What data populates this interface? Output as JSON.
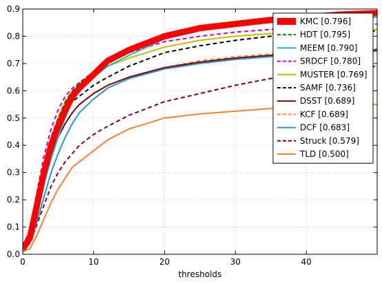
{
  "chart_data": {
    "type": "line",
    "title": "",
    "xlabel": "thresholds",
    "ylabel": "",
    "xlim": [
      0,
      50
    ],
    "ylim": [
      0,
      0.9
    ],
    "xticks": [
      0,
      10,
      20,
      30,
      40
    ],
    "yticks": [
      0,
      0.1,
      0.2,
      0.3,
      0.4,
      0.5,
      0.6,
      0.7,
      0.8,
      0.9
    ],
    "xtick_labels": [
      "0",
      "10",
      "20",
      "30",
      "40"
    ],
    "ytick_labels": [
      "0.0",
      "0.1",
      "0.2",
      "0.3",
      "0.4",
      "0.5",
      "0.6",
      "0.7",
      "0.8",
      "0.9"
    ],
    "grid": true,
    "legend_position": "top-right",
    "x": [
      0,
      1,
      2,
      3,
      4,
      5,
      6,
      7,
      8,
      10,
      12,
      15,
      20,
      25,
      30,
      35,
      40,
      45,
      50
    ],
    "series": [
      {
        "name": "KMC [0.796]",
        "color": "#ff0000",
        "dash": "solid",
        "width": 9,
        "values": [
          0.02,
          0.06,
          0.18,
          0.3,
          0.4,
          0.47,
          0.53,
          0.58,
          0.61,
          0.66,
          0.71,
          0.75,
          0.8,
          0.83,
          0.845,
          0.86,
          0.87,
          0.88,
          0.885
        ]
      },
      {
        "name": "HDT [0.795]",
        "color": "#008000",
        "dash": "dashed",
        "width": 2,
        "values": [
          0.02,
          0.07,
          0.2,
          0.33,
          0.43,
          0.5,
          0.56,
          0.6,
          0.63,
          0.67,
          0.71,
          0.75,
          0.8,
          0.825,
          0.845,
          0.86,
          0.87,
          0.875,
          0.88
        ]
      },
      {
        "name": "MEEM [0.790]",
        "color": "#1bb8c7",
        "dash": "solid",
        "width": 2,
        "values": [
          0.01,
          0.05,
          0.15,
          0.26,
          0.35,
          0.43,
          0.5,
          0.56,
          0.6,
          0.65,
          0.69,
          0.73,
          0.79,
          0.82,
          0.84,
          0.85,
          0.86,
          0.865,
          0.87
        ]
      },
      {
        "name": "SRDCF [0.780]",
        "color": "#cc00cc",
        "dash": "dashed",
        "width": 2,
        "values": [
          0.03,
          0.09,
          0.23,
          0.36,
          0.46,
          0.53,
          0.58,
          0.61,
          0.63,
          0.66,
          0.7,
          0.74,
          0.78,
          0.8,
          0.815,
          0.825,
          0.835,
          0.84,
          0.845
        ]
      },
      {
        "name": "MUSTER [0.769]",
        "color": "#bfbf00",
        "dash": "solid",
        "width": 2,
        "values": [
          0.02,
          0.07,
          0.19,
          0.31,
          0.42,
          0.5,
          0.56,
          0.6,
          0.62,
          0.66,
          0.69,
          0.72,
          0.76,
          0.785,
          0.8,
          0.81,
          0.815,
          0.82,
          0.825
        ]
      },
      {
        "name": "SAMF [0.736]",
        "color": "#000000",
        "dash": "dashed",
        "width": 2,
        "values": [
          0.02,
          0.07,
          0.18,
          0.3,
          0.4,
          0.47,
          0.52,
          0.56,
          0.58,
          0.62,
          0.65,
          0.69,
          0.74,
          0.765,
          0.785,
          0.8,
          0.81,
          0.815,
          0.82
        ]
      },
      {
        "name": "DSST [0.689]",
        "color": "#800000",
        "dash": "solid",
        "width": 2,
        "values": [
          0.02,
          0.06,
          0.16,
          0.27,
          0.36,
          0.43,
          0.48,
          0.52,
          0.55,
          0.59,
          0.62,
          0.65,
          0.685,
          0.705,
          0.72,
          0.73,
          0.74,
          0.745,
          0.75
        ]
      },
      {
        "name": "KCF [0.689]",
        "color": "#ff8c33",
        "dash": "dashed",
        "width": 2,
        "values": [
          0.02,
          0.06,
          0.16,
          0.27,
          0.36,
          0.43,
          0.48,
          0.52,
          0.55,
          0.59,
          0.62,
          0.65,
          0.685,
          0.71,
          0.725,
          0.735,
          0.745,
          0.75,
          0.755
        ]
      },
      {
        "name": "DCF [0.683]",
        "color": "#1a9ad9",
        "dash": "solid",
        "width": 2,
        "values": [
          0.01,
          0.04,
          0.12,
          0.21,
          0.3,
          0.37,
          0.43,
          0.48,
          0.52,
          0.57,
          0.61,
          0.645,
          0.68,
          0.7,
          0.715,
          0.725,
          0.735,
          0.74,
          0.745
        ]
      },
      {
        "name": "Struck [0.579]",
        "color": "#800020",
        "dash": "dashed",
        "width": 2,
        "values": [
          0.01,
          0.04,
          0.11,
          0.18,
          0.25,
          0.3,
          0.34,
          0.37,
          0.4,
          0.44,
          0.47,
          0.51,
          0.56,
          0.59,
          0.62,
          0.645,
          0.665,
          0.68,
          0.69
        ]
      },
      {
        "name": "TLD [0.500]",
        "color": "#ff7f2a",
        "dash": "solid",
        "width": 2,
        "values": [
          0.01,
          0.02,
          0.07,
          0.13,
          0.19,
          0.24,
          0.28,
          0.32,
          0.34,
          0.38,
          0.42,
          0.46,
          0.5,
          0.515,
          0.525,
          0.535,
          0.54,
          0.545,
          0.55
        ]
      }
    ]
  }
}
